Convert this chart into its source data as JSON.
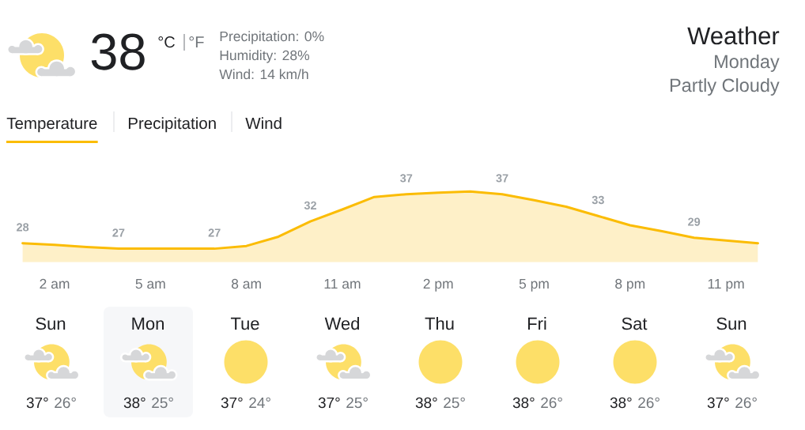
{
  "chart_data": [
    {
      "type": "other",
      "title": "Weather",
      "subtitle": "Monday",
      "annotations": [
        "Partly Cloudy",
        "38",
        "°C",
        "°F",
        "Precipitation: 0%",
        "Humidity: 28%",
        "Wind: 14 km/h"
      ]
    },
    {
      "type": "area",
      "title": "Temperature",
      "annotations": [
        "Precipitation",
        "Wind"
      ],
      "color": "#fbbc04",
      "categories": [
        null,
        "2 am",
        null,
        null,
        "5 am",
        null,
        null,
        "8 am",
        null,
        null,
        "11 am",
        null,
        null,
        "2 pm",
        null,
        null,
        "5 pm",
        null,
        null,
        "8 pm",
        null,
        null,
        "11 pm",
        null
      ],
      "values": [
        28,
        27.7,
        27.3,
        27,
        27,
        27,
        27,
        27.5,
        29.2,
        32,
        34.2,
        36.5,
        37,
        37.3,
        37.5,
        37,
        35.9,
        34.7,
        33,
        31.3,
        30.2,
        29,
        28.5,
        28.0
      ],
      "value_labels": [
        "28",
        null,
        null,
        "27",
        null,
        null,
        "27",
        null,
        null,
        "32",
        null,
        null,
        "37",
        null,
        null,
        "37",
        null,
        null,
        "33",
        null,
        null,
        "29",
        null,
        null
      ]
    },
    {
      "type": "other",
      "categories": [
        "Sun",
        "Mon",
        "Tue",
        "Wed",
        "Thu",
        "Fri",
        "Sat",
        "Sun"
      ],
      "annotations": [
        "37°",
        "26°",
        "38°",
        "25°",
        "37°",
        "24°",
        "37°",
        "25°",
        "38°",
        "25°",
        "38°",
        "26°",
        "38°",
        "26°",
        "37°",
        "26°"
      ]
    }
  ]
}
